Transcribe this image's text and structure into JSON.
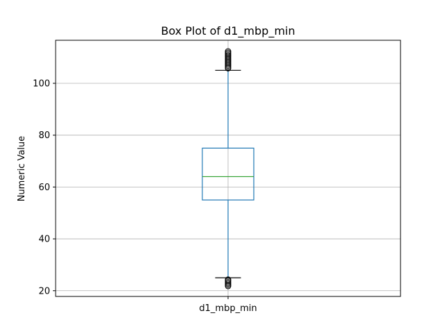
{
  "chart_data": {
    "type": "box",
    "title": "Box Plot of d1_mbp_min",
    "xlabel": "",
    "ylabel": "Numeric Value",
    "categories": [
      "d1_mbp_min"
    ],
    "ylim": [
      17.8,
      116.6
    ],
    "yticks": [
      20,
      40,
      60,
      80,
      100
    ],
    "grid": true,
    "series": [
      {
        "name": "d1_mbp_min",
        "whisker_low": 25,
        "q1": 55,
        "median": 64,
        "q3": 75,
        "whisker_high": 105,
        "outliers_low": [
          21.8,
          22.3,
          22.8,
          23.3,
          23.8,
          24.3
        ],
        "outliers_high": [
          105.8,
          106.3,
          106.8,
          107.3,
          107.8,
          108.3,
          108.8,
          109.3,
          109.8,
          110.3,
          110.8,
          111.3,
          111.8,
          112.3
        ]
      }
    ]
  },
  "colors": {
    "box": "#1f77b4",
    "median": "#2ca02c",
    "whisker_cap": "#000000",
    "grid": "#b0b0b0",
    "axis": "#000000",
    "outlier": "#000000"
  }
}
